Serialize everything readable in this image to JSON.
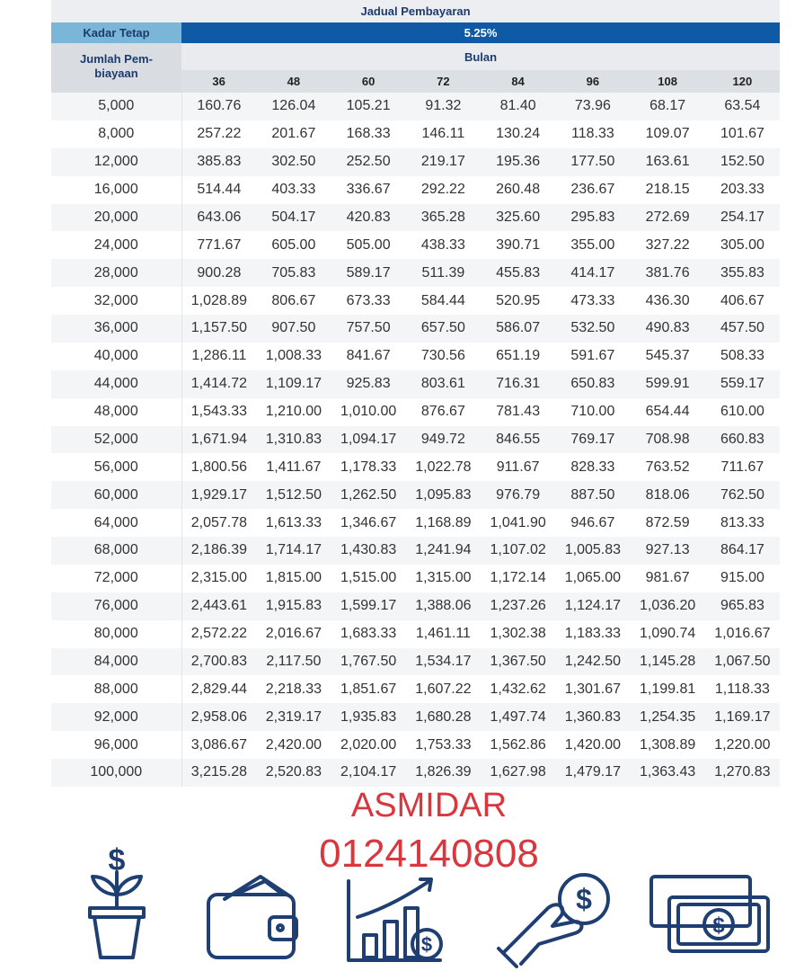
{
  "header": {
    "title": "Jadual Pembayaran",
    "rate_label": "Kadar Tetap",
    "rate": "5.25%",
    "amount_header": [
      "Jumlah Pem-",
      "biayaan"
    ],
    "months_label": "Bulan",
    "months": [
      "36",
      "48",
      "60",
      "72",
      "84",
      "96",
      "108",
      "120"
    ]
  },
  "table": {
    "rows": [
      [
        "5,000",
        "160.76",
        "126.04",
        "105.21",
        "91.32",
        "81.40",
        "73.96",
        "68.17",
        "63.54"
      ],
      [
        "8,000",
        "257.22",
        "201.67",
        "168.33",
        "146.11",
        "130.24",
        "118.33",
        "109.07",
        "101.67"
      ],
      [
        "12,000",
        "385.83",
        "302.50",
        "252.50",
        "219.17",
        "195.36",
        "177.50",
        "163.61",
        "152.50"
      ],
      [
        "16,000",
        "514.44",
        "403.33",
        "336.67",
        "292.22",
        "260.48",
        "236.67",
        "218.15",
        "203.33"
      ],
      [
        "20,000",
        "643.06",
        "504.17",
        "420.83",
        "365.28",
        "325.60",
        "295.83",
        "272.69",
        "254.17"
      ],
      [
        "24,000",
        "771.67",
        "605.00",
        "505.00",
        "438.33",
        "390.71",
        "355.00",
        "327.22",
        "305.00"
      ],
      [
        "28,000",
        "900.28",
        "705.83",
        "589.17",
        "511.39",
        "455.83",
        "414.17",
        "381.76",
        "355.83"
      ],
      [
        "32,000",
        "1,028.89",
        "806.67",
        "673.33",
        "584.44",
        "520.95",
        "473.33",
        "436.30",
        "406.67"
      ],
      [
        "36,000",
        "1,157.50",
        "907.50",
        "757.50",
        "657.50",
        "586.07",
        "532.50",
        "490.83",
        "457.50"
      ],
      [
        "40,000",
        "1,286.11",
        "1,008.33",
        "841.67",
        "730.56",
        "651.19",
        "591.67",
        "545.37",
        "508.33"
      ],
      [
        "44,000",
        "1,414.72",
        "1,109.17",
        "925.83",
        "803.61",
        "716.31",
        "650.83",
        "599.91",
        "559.17"
      ],
      [
        "48,000",
        "1,543.33",
        "1,210.00",
        "1,010.00",
        "876.67",
        "781.43",
        "710.00",
        "654.44",
        "610.00"
      ],
      [
        "52,000",
        "1,671.94",
        "1,310.83",
        "1,094.17",
        "949.72",
        "846.55",
        "769.17",
        "708.98",
        "660.83"
      ],
      [
        "56,000",
        "1,800.56",
        "1,411.67",
        "1,178.33",
        "1,022.78",
        "911.67",
        "828.33",
        "763.52",
        "711.67"
      ],
      [
        "60,000",
        "1,929.17",
        "1,512.50",
        "1,262.50",
        "1,095.83",
        "976.79",
        "887.50",
        "818.06",
        "762.50"
      ],
      [
        "64,000",
        "2,057.78",
        "1,613.33",
        "1,346.67",
        "1,168.89",
        "1,041.90",
        "946.67",
        "872.59",
        "813.33"
      ],
      [
        "68,000",
        "2,186.39",
        "1,714.17",
        "1,430.83",
        "1,241.94",
        "1,107.02",
        "1,005.83",
        "927.13",
        "864.17"
      ],
      [
        "72,000",
        "2,315.00",
        "1,815.00",
        "1,515.00",
        "1,315.00",
        "1,172.14",
        "1,065.00",
        "981.67",
        "915.00"
      ],
      [
        "76,000",
        "2,443.61",
        "1,915.83",
        "1,599.17",
        "1,388.06",
        "1,237.26",
        "1,124.17",
        "1,036.20",
        "965.83"
      ],
      [
        "80,000",
        "2,572.22",
        "2,016.67",
        "1,683.33",
        "1,461.11",
        "1,302.38",
        "1,183.33",
        "1,090.74",
        "1,016.67"
      ],
      [
        "84,000",
        "2,700.83",
        "2,117.50",
        "1,767.50",
        "1,534.17",
        "1,367.50",
        "1,242.50",
        "1,145.28",
        "1,067.50"
      ],
      [
        "88,000",
        "2,829.44",
        "2,218.33",
        "1,851.67",
        "1,607.22",
        "1,432.62",
        "1,301.67",
        "1,199.81",
        "1,118.33"
      ],
      [
        "92,000",
        "2,958.06",
        "2,319.17",
        "1,935.83",
        "1,680.28",
        "1,497.74",
        "1,360.83",
        "1,254.35",
        "1,169.17"
      ],
      [
        "96,000",
        "3,086.67",
        "2,420.00",
        "2,020.00",
        "1,753.33",
        "1,562.86",
        "1,420.00",
        "1,308.89",
        "1,220.00"
      ],
      [
        "100,000",
        "3,215.28",
        "2,520.83",
        "2,104.17",
        "1,826.39",
        "1,627.98",
        "1,479.17",
        "1,363.43",
        "1,270.83"
      ]
    ]
  },
  "footer": {
    "name": "ASMIDAR",
    "phone": "0124140808"
  }
}
